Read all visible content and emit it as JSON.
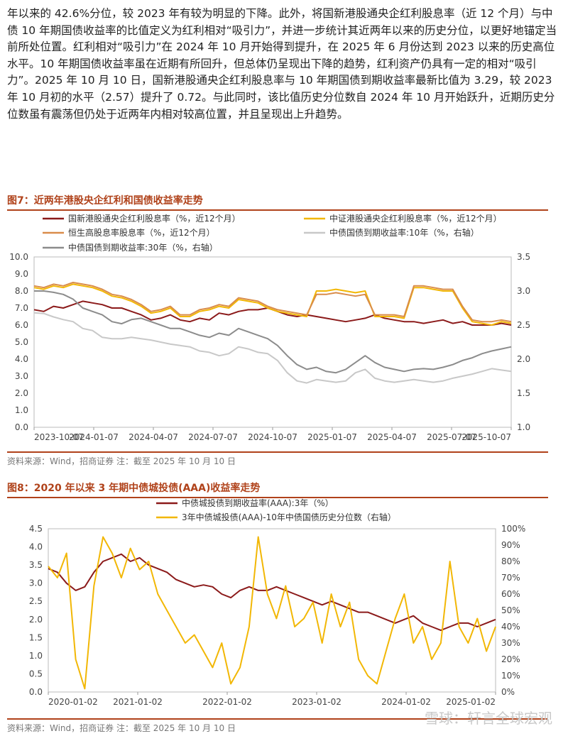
{
  "text": {
    "paragraph": "年以来的 42.6%分位，较 2023 年有较为明显的下降。此外，将国新港股通央企红利股息率（近 12 个月）与中债 10 年期国债收益率的比值定义为红利相对“吸引力”，并进一步统计其近两年以来的历史分位，以更好地锚定当前所处位置。红利相对“吸引力”在 2024 年 10 月开始得到提升，在 2025 年 6 月份达到 2023 以来的历史高位水平。10 年期国债收益率虽在近期有所回升，但总体仍呈现出下降的趋势，红利资产仍具有一定的相对“吸引力”。2025 年 10 月 10 日，国新港股通央企红利股息率与 10 年期国债到期收益率最新比值为 3.29，较 2023 年 10 月初的水平（2.57）提升了 0.72。与此同时，该比值历史分位数自 2024 年 10 月开始跃升，近期历史分位数虽有震荡但仍处于近两年内相对较高位置，并且呈现出上升趋势。"
  },
  "fig7": {
    "title": "图7：近两年港股央企红利和国债收益率走势",
    "source": "资料来源：Wind，招商证券    注：截至 2025 年 10 月 10 日",
    "chart_data": {
      "type": "line",
      "x_ticks": [
        "2023-10-07",
        "2024-01-07",
        "2024-04-07",
        "2024-07-07",
        "2024-10-07",
        "2025-01-07",
        "2025-04-07",
        "2025-07-07",
        "2025-10-07"
      ],
      "y_left_ticks": [
        "0.0",
        "1.0",
        "2.0",
        "3.0",
        "4.0",
        "5.0",
        "6.0",
        "7.0",
        "8.0",
        "9.0",
        "10.0"
      ],
      "y_right_ticks": [
        "1.0",
        "1.5",
        "2.0",
        "2.5",
        "3.0",
        "3.5"
      ],
      "ylim_left": [
        0,
        10
      ],
      "ylim_right": [
        1.0,
        3.5
      ],
      "series": [
        {
          "name": "国新港股通央企红利股息率（%，近12个月）",
          "color": "#8b1a1a",
          "axis": "left",
          "values": [
            6.9,
            6.8,
            7.1,
            7.0,
            7.2,
            7.4,
            7.3,
            7.2,
            7.0,
            7.0,
            6.8,
            6.6,
            6.3,
            6.4,
            6.6,
            6.3,
            6.2,
            6.4,
            6.3,
            6.7,
            6.6,
            6.8,
            6.9,
            6.9,
            7.0,
            6.8,
            6.6,
            6.5,
            6.6,
            6.5,
            6.4,
            6.3,
            6.2,
            6.3,
            6.4,
            6.6,
            6.4,
            6.3,
            6.2,
            6.2,
            6.1,
            6.2,
            6.3,
            6.1,
            6.2,
            6.0,
            6.0,
            6.0,
            6.1,
            6.0
          ]
        },
        {
          "name": "中证港股通央企红利股息率（%，近12个月）",
          "color": "#f2b705",
          "axis": "left",
          "values": [
            8.2,
            8.1,
            8.3,
            8.2,
            8.4,
            8.3,
            8.2,
            8.0,
            7.7,
            7.6,
            7.4,
            7.1,
            6.7,
            6.8,
            7.0,
            6.5,
            6.5,
            6.8,
            6.9,
            7.1,
            7.0,
            7.5,
            7.4,
            7.3,
            7.0,
            6.8,
            6.7,
            6.6,
            6.5,
            8.0,
            8.0,
            8.1,
            8.0,
            7.9,
            8.0,
            6.5,
            6.5,
            6.5,
            6.4,
            8.2,
            8.2,
            8.1,
            8.0,
            8.0,
            7.0,
            6.2,
            6.1,
            6.0,
            6.2,
            6.1
          ]
        },
        {
          "name": "恒生高股息率股息率（%，近12个月）",
          "color": "#d98c4a",
          "axis": "left",
          "values": [
            8.3,
            8.2,
            8.4,
            8.3,
            8.5,
            8.4,
            8.3,
            8.1,
            7.8,
            7.7,
            7.5,
            7.2,
            6.8,
            6.9,
            7.1,
            6.6,
            6.6,
            6.9,
            7.0,
            7.2,
            7.1,
            7.6,
            7.5,
            7.4,
            7.1,
            6.9,
            6.8,
            6.7,
            6.6,
            7.8,
            7.8,
            7.9,
            7.8,
            7.7,
            7.8,
            6.6,
            6.6,
            6.6,
            6.5,
            8.3,
            8.3,
            8.2,
            8.1,
            8.1,
            7.1,
            6.3,
            6.2,
            6.2,
            6.3,
            6.2
          ]
        },
        {
          "name": "中债国债到期收益率:10年（%，右轴）",
          "color": "#c8c8c8",
          "axis": "right",
          "values": [
            2.68,
            2.67,
            2.62,
            2.58,
            2.55,
            2.45,
            2.42,
            2.32,
            2.3,
            2.3,
            2.32,
            2.3,
            2.28,
            2.25,
            2.22,
            2.2,
            2.18,
            2.12,
            2.1,
            2.05,
            2.08,
            2.18,
            2.15,
            2.1,
            2.08,
            1.98,
            1.8,
            1.68,
            1.65,
            1.7,
            1.68,
            1.66,
            1.68,
            1.8,
            1.85,
            1.72,
            1.68,
            1.66,
            1.68,
            1.7,
            1.68,
            1.66,
            1.68,
            1.72,
            1.75,
            1.78,
            1.82,
            1.86,
            1.84,
            1.82
          ]
        },
        {
          "name": "中债国债到期收益率:30年（%，右轴）",
          "color": "#8c8c8c",
          "axis": "right",
          "values": [
            3.0,
            3.0,
            2.98,
            2.95,
            2.88,
            2.75,
            2.7,
            2.65,
            2.55,
            2.52,
            2.58,
            2.6,
            2.55,
            2.5,
            2.45,
            2.45,
            2.4,
            2.35,
            2.32,
            2.38,
            2.35,
            2.45,
            2.4,
            2.35,
            2.3,
            2.2,
            2.05,
            1.92,
            1.85,
            1.88,
            1.82,
            1.8,
            1.85,
            1.95,
            2.05,
            1.95,
            1.88,
            1.85,
            1.82,
            1.85,
            1.86,
            1.85,
            1.88,
            1.92,
            1.98,
            2.02,
            2.08,
            2.12,
            2.15,
            2.18
          ]
        }
      ]
    }
  },
  "fig8": {
    "title": "图8：2020 年以来 3 年期中债城投债(AAA)收益率走势",
    "source": "资料来源：Wind，招商证券    注：截至 2025 年 10 月 10 日",
    "chart_data": {
      "type": "line",
      "x_ticks": [
        "2020-01-02",
        "2021-01-02",
        "2022-01-02",
        "2023-01-02",
        "2024-01-02",
        "2025-01-02"
      ],
      "y_left_ticks": [
        "0.0",
        "0.5",
        "1.0",
        "1.5",
        "2.0",
        "2.5",
        "3.0",
        "3.5",
        "4.0",
        "4.5"
      ],
      "y_right_ticks": [
        "0%",
        "10%",
        "20%",
        "30%",
        "40%",
        "50%",
        "60%",
        "70%",
        "80%",
        "90%",
        "100%"
      ],
      "ylim_left": [
        0,
        4.5
      ],
      "ylim_right": [
        0,
        100
      ],
      "series": [
        {
          "name": "中债城投债到期收益率(AAA):3年（%）",
          "color": "#8b1a1a",
          "axis": "left",
          "values": [
            3.4,
            3.3,
            3.0,
            2.8,
            2.9,
            3.3,
            3.6,
            3.7,
            3.8,
            3.6,
            3.7,
            3.5,
            3.4,
            3.3,
            3.1,
            3.0,
            2.9,
            2.95,
            2.9,
            2.7,
            2.6,
            2.8,
            2.9,
            2.8,
            2.8,
            2.9,
            2.8,
            2.7,
            2.6,
            2.5,
            2.4,
            2.5,
            2.4,
            2.3,
            2.2,
            2.2,
            2.1,
            2.0,
            1.9,
            2.0,
            2.1,
            1.9,
            1.8,
            1.7,
            1.8,
            1.9,
            1.9,
            1.8,
            1.9,
            2.0
          ]
        },
        {
          "name": "3年中债城投债(AAA)-10年中债国债历史分位数（右轴）",
          "color": "#f2b705",
          "axis": "right",
          "values": [
            77,
            70,
            85,
            20,
            2,
            65,
            95,
            85,
            70,
            88,
            75,
            80,
            60,
            50,
            40,
            30,
            35,
            25,
            15,
            30,
            5,
            15,
            40,
            95,
            60,
            45,
            65,
            40,
            45,
            55,
            30,
            60,
            40,
            55,
            20,
            10,
            5,
            25,
            45,
            60,
            30,
            40,
            20,
            30,
            80,
            40,
            30,
            45,
            25,
            40
          ]
        }
      ]
    }
  },
  "watermark": "雪球：轩言全球宏观",
  "colors": {
    "accent": "#b0421a"
  }
}
